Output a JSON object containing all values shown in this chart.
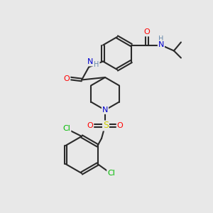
{
  "background_color": "#e8e8e8",
  "bond_color": "#2a2a2a",
  "atom_colors": {
    "N": "#0000cc",
    "O": "#ff0000",
    "S": "#cccc00",
    "Cl": "#00bb00",
    "H": "#6688aa",
    "C": "#2a2a2a"
  },
  "figsize": [
    3.0,
    3.0
  ],
  "dpi": 100
}
